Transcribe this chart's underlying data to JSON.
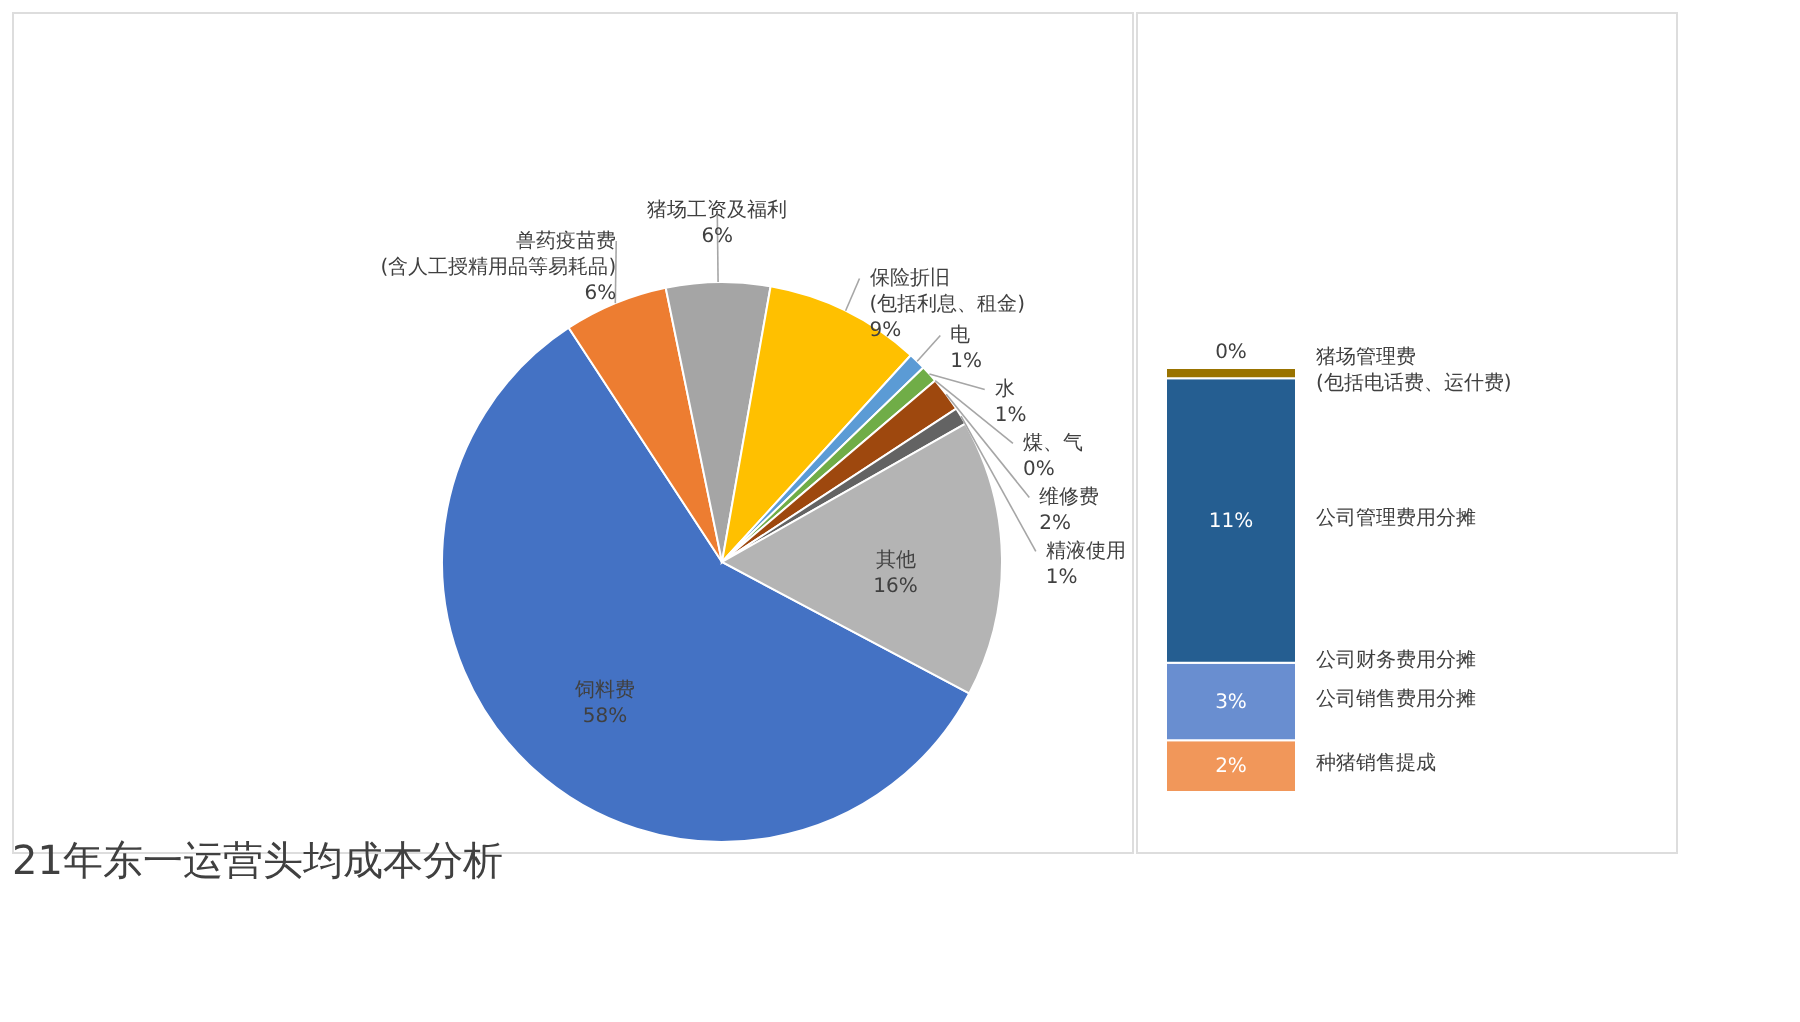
{
  "chart_data": [
    {
      "type": "pie",
      "title": "21年东一运营头均成本分析",
      "legend": false,
      "data_labels": true,
      "categories": [
        "饲料费",
        "兽药疫苗费(含人工授精用品等易耗品)",
        "猪场工资及福利",
        "保险折旧(包括利息、租金)",
        "电",
        "水",
        "煤、气",
        "维修费",
        "精液使用",
        "其他"
      ],
      "values": [
        58,
        6,
        6,
        9,
        1,
        1,
        0,
        2,
        1,
        16
      ],
      "value_labels": [
        "58%",
        "6%",
        "6%",
        "9%",
        "1%",
        "1%",
        "0%",
        "2%",
        "1%",
        "16%"
      ],
      "colors": [
        "#4472c4",
        "#ed7d31",
        "#a5a5a5",
        "#ffc000",
        "#5b9bd5",
        "#70ad47",
        "#264478",
        "#9e480e",
        "#636363",
        "#b4b4b4"
      ]
    },
    {
      "type": "bar",
      "stacked": true,
      "categories": [
        null
      ],
      "series": [
        {
          "name": "种猪销售提成",
          "color": "#f1975a",
          "values": [
            2
          ],
          "value_labels": [
            "2%"
          ]
        },
        {
          "name": "公司销售费用分摊",
          "color": "#698ed0",
          "values": [
            3
          ],
          "value_labels": [
            "3%"
          ]
        },
        {
          "name": "公司财务费用分摊",
          "color": "#43682b",
          "values": [
            null
          ],
          "value_labels": [
            null
          ]
        },
        {
          "name": "公司管理费用分摊",
          "color": "#255e91",
          "values": [
            11
          ],
          "value_labels": [
            "11%"
          ]
        },
        {
          "name": "猪场管理费(包括电话费、运什费)",
          "color": "#997300",
          "values": [
            0.4
          ],
          "value_labels": [
            "0%"
          ]
        }
      ]
    }
  ]
}
